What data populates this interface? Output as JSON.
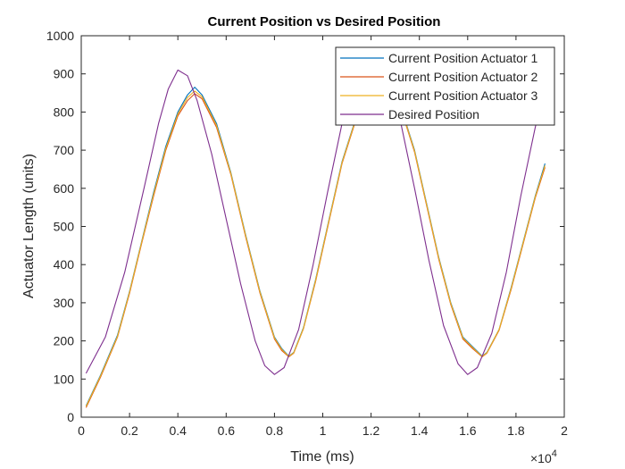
{
  "chart_data": {
    "type": "line",
    "title": "Current Position vs Desired Position",
    "xlabel": "Time (ms)",
    "ylabel": "Actuator Length (units)",
    "x_exponent_label": "×10",
    "x_exponent": "4",
    "xlim": [
      0,
      20000
    ],
    "ylim": [
      0,
      1000
    ],
    "xticks": [
      0,
      2000,
      4000,
      6000,
      8000,
      10000,
      12000,
      14000,
      16000,
      18000,
      20000
    ],
    "xtick_labels": [
      "0",
      "0.2",
      "0.4",
      "0.6",
      "0.8",
      "1",
      "1.2",
      "1.4",
      "1.6",
      "1.8",
      "2"
    ],
    "yticks": [
      0,
      100,
      200,
      300,
      400,
      500,
      600,
      700,
      800,
      900,
      1000
    ],
    "ytick_labels": [
      "0",
      "100",
      "200",
      "300",
      "400",
      "500",
      "600",
      "700",
      "800",
      "900",
      "1000"
    ],
    "grid": false,
    "legend_position": "top-right",
    "series": [
      {
        "name": "Current Position Actuator 1",
        "color": "#0072BD",
        "x": [
          200,
          800,
          1500,
          2000,
          2500,
          3000,
          3500,
          4000,
          4400,
          4700,
          5000,
          5600,
          6200,
          6800,
          7400,
          8000,
          8300,
          8600,
          8800,
          9200,
          9700,
          10300,
          10800,
          11300,
          11800,
          12200,
          12500,
          12800,
          13200,
          13800,
          14300,
          14800,
          15300,
          15800,
          16200,
          16600,
          16800,
          17300,
          17800,
          18300,
          18800,
          19200
        ],
        "y": [
          30,
          110,
          215,
          330,
          460,
          590,
          710,
          800,
          845,
          865,
          845,
          770,
          640,
          480,
          330,
          210,
          180,
          160,
          170,
          235,
          360,
          530,
          670,
          770,
          850,
          890,
          900,
          880,
          820,
          700,
          560,
          420,
          300,
          210,
          185,
          160,
          170,
          230,
          340,
          460,
          580,
          665
        ]
      },
      {
        "name": "Current Position Actuator 2",
        "color": "#D95319",
        "x": [
          200,
          800,
          1500,
          2000,
          2500,
          3000,
          3500,
          4000,
          4400,
          4700,
          5000,
          5600,
          6200,
          6800,
          7400,
          8000,
          8300,
          8600,
          8800,
          9200,
          9700,
          10300,
          10800,
          11300,
          11800,
          12200,
          12500,
          12800,
          13200,
          13800,
          14300,
          14800,
          15300,
          15800,
          16200,
          16600,
          16800,
          17300,
          17800,
          18300,
          18800,
          19200
        ],
        "y": [
          25,
          105,
          210,
          325,
          455,
          580,
          700,
          790,
          830,
          848,
          835,
          760,
          635,
          475,
          325,
          205,
          175,
          158,
          168,
          232,
          355,
          525,
          665,
          765,
          845,
          885,
          895,
          876,
          816,
          695,
          555,
          415,
          295,
          205,
          180,
          158,
          168,
          228,
          335,
          455,
          575,
          655
        ]
      },
      {
        "name": "Current Position Actuator 3",
        "color": "#EDB120",
        "x": [
          200,
          800,
          1500,
          2000,
          2500,
          3000,
          3500,
          4000,
          4400,
          4700,
          5000,
          5600,
          6200,
          6800,
          7400,
          8000,
          8300,
          8600,
          8800,
          9200,
          9700,
          10300,
          10800,
          11300,
          11800,
          12200,
          12500,
          12800,
          13200,
          13800,
          14300,
          14800,
          15300,
          15800,
          16200,
          16600,
          16800,
          17300,
          17800,
          18300,
          18800,
          19200
        ],
        "y": [
          28,
          108,
          212,
          328,
          458,
          585,
          705,
          795,
          838,
          855,
          840,
          765,
          638,
          478,
          328,
          208,
          178,
          159,
          169,
          233,
          358,
          528,
          668,
          768,
          848,
          888,
          898,
          878,
          818,
          698,
          558,
          418,
          298,
          208,
          183,
          159,
          169,
          230,
          338,
          458,
          578,
          660
        ]
      },
      {
        "name": "Desired Position",
        "color": "#7E2F8E",
        "x": [
          200,
          1000,
          1800,
          2600,
          3200,
          3600,
          4000,
          4400,
          4800,
          5400,
          6000,
          6600,
          7200,
          7600,
          8000,
          8400,
          9000,
          9600,
          10200,
          10800,
          11400,
          12000,
          12600,
          13200,
          13800,
          14400,
          15000,
          15600,
          16000,
          16400,
          17000,
          17600,
          18200,
          18800,
          19200
        ],
        "y": [
          115,
          210,
          380,
          600,
          770,
          860,
          910,
          895,
          830,
          690,
          520,
          350,
          200,
          135,
          112,
          130,
          230,
          400,
          590,
          770,
          880,
          910,
          880,
          780,
          600,
          410,
          240,
          140,
          112,
          130,
          220,
          380,
          580,
          760,
          860
        ]
      }
    ]
  }
}
